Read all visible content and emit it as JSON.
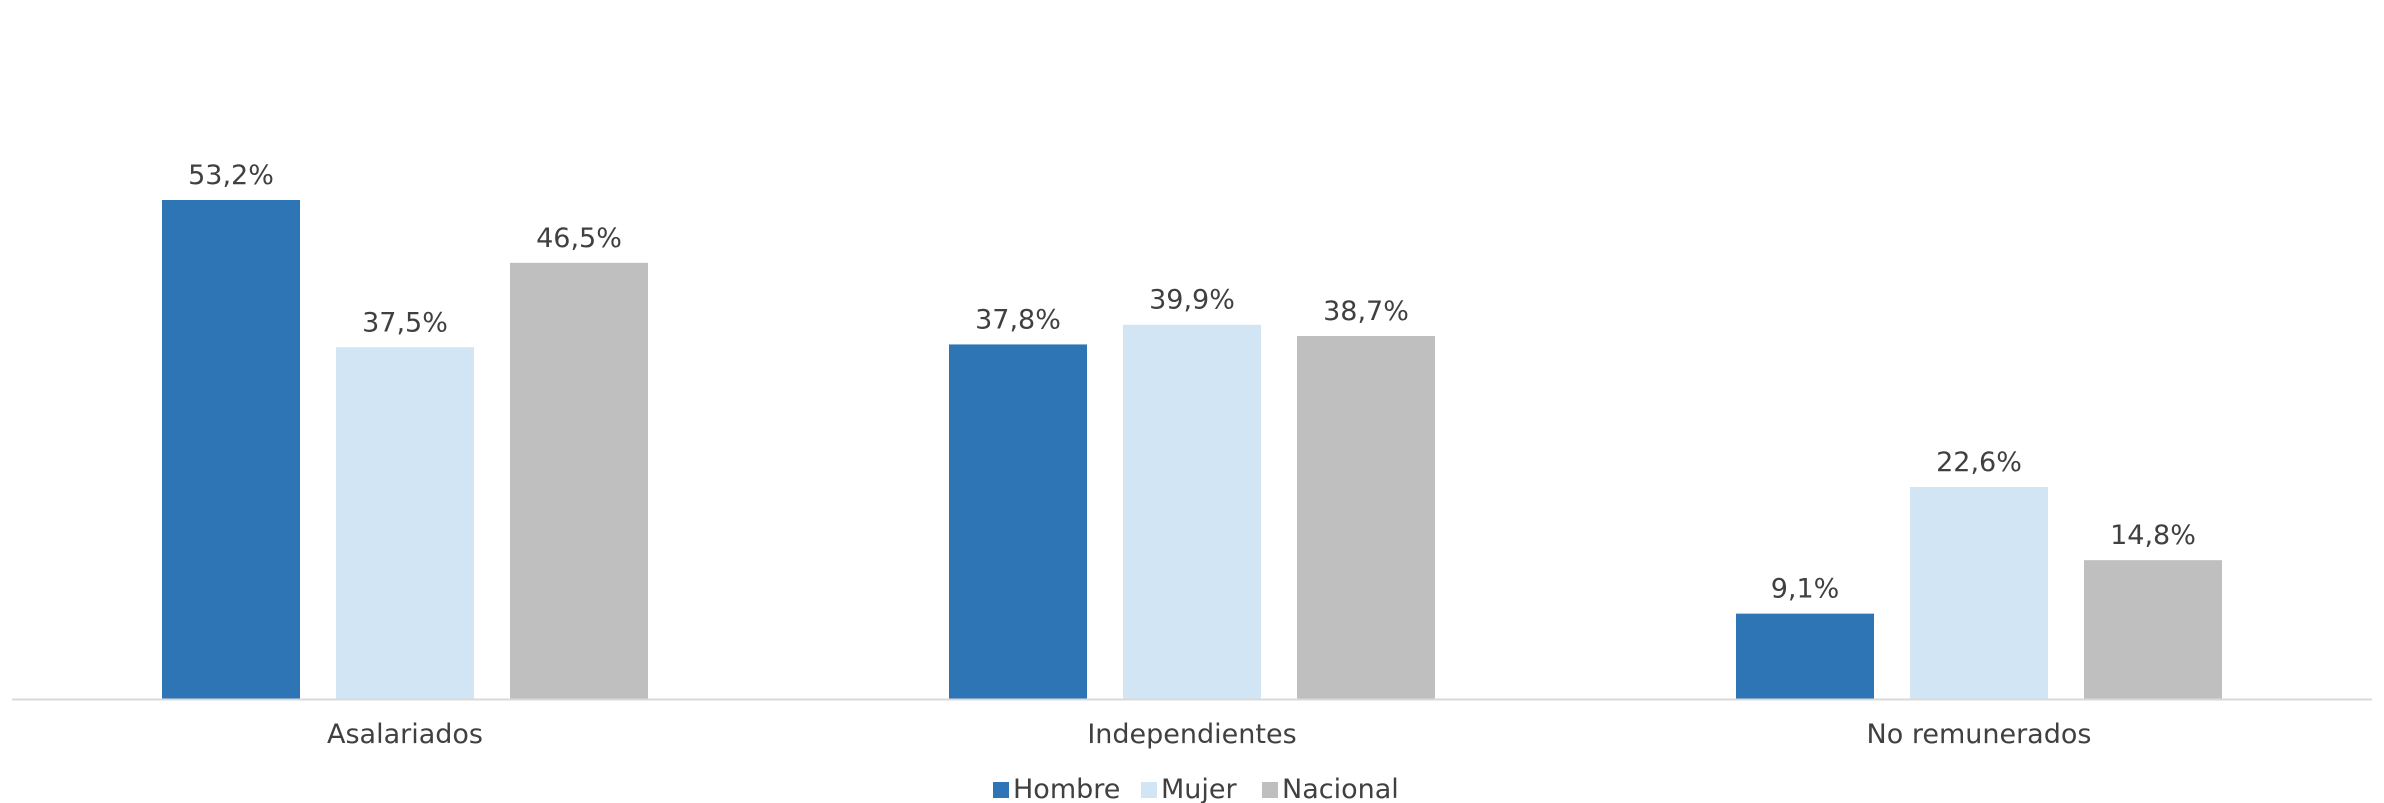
{
  "chart_data": {
    "type": "bar",
    "title": "",
    "xlabel": "",
    "ylabel": "",
    "ylim": [
      0,
      60
    ],
    "grid": false,
    "legend_position": "bottom",
    "categories": [
      "Asalariados",
      "Independientes",
      "No remunerados"
    ],
    "series": [
      {
        "name": "Hombre",
        "color": "#2E75B6",
        "values": [
          53.2,
          37.8,
          9.1
        ],
        "labels": [
          "53,2%",
          "37,8%",
          "9,1%"
        ]
      },
      {
        "name": "Mujer",
        "color": "#D2E5F4",
        "values": [
          37.5,
          39.9,
          22.6
        ],
        "labels": [
          "37,5%",
          "39,9%",
          "22,6%"
        ]
      },
      {
        "name": "Nacional",
        "color": "#BFBFBF",
        "values": [
          46.5,
          38.7,
          14.8
        ],
        "labels": [
          "46,5%",
          "38,7%",
          "14,8%"
        ]
      }
    ]
  },
  "colors": {
    "axis": "#D9D9D9",
    "text": "#404040"
  }
}
